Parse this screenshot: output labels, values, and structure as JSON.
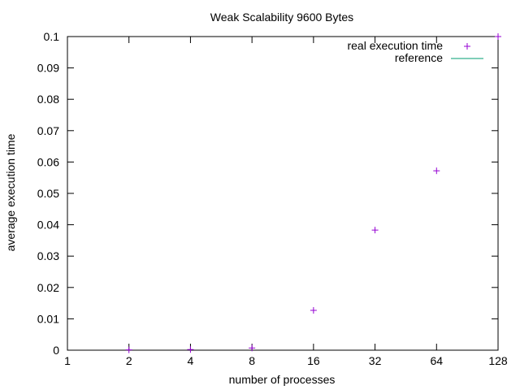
{
  "chart_data": {
    "type": "scatter",
    "title": "Weak Scalability 9600 Bytes",
    "xlabel": "number of processes",
    "ylabel": "average execution time",
    "x_scale": "log2",
    "xlim": [
      1,
      128
    ],
    "ylim": [
      0,
      0.1
    ],
    "x_ticks": [
      1,
      2,
      4,
      8,
      16,
      32,
      64,
      128
    ],
    "x_tick_labels": [
      "1",
      "2",
      "4",
      "8",
      "16",
      "32",
      "64",
      "128"
    ],
    "y_ticks": [
      0,
      0.01,
      0.02,
      0.03,
      0.04,
      0.05,
      0.06,
      0.07,
      0.08,
      0.09,
      0.1
    ],
    "y_tick_labels": [
      "0",
      "0.01",
      "0.02",
      "0.03",
      "0.04",
      "0.05",
      "0.06",
      "0.07",
      "0.08",
      "0.09",
      "0.1"
    ],
    "grid": false,
    "legend_position": "top-right",
    "series": [
      {
        "name": "real execution time",
        "marker": "plus",
        "color": "#9400d3",
        "x": [
          2,
          4,
          8,
          16,
          32,
          64,
          128
        ],
        "y": [
          0.0001,
          0.0002,
          0.0007,
          0.0127,
          0.0383,
          0.0572,
          0.1
        ]
      },
      {
        "name": "reference",
        "marker": "line",
        "color": "#009e73",
        "x": [],
        "y": []
      }
    ]
  }
}
